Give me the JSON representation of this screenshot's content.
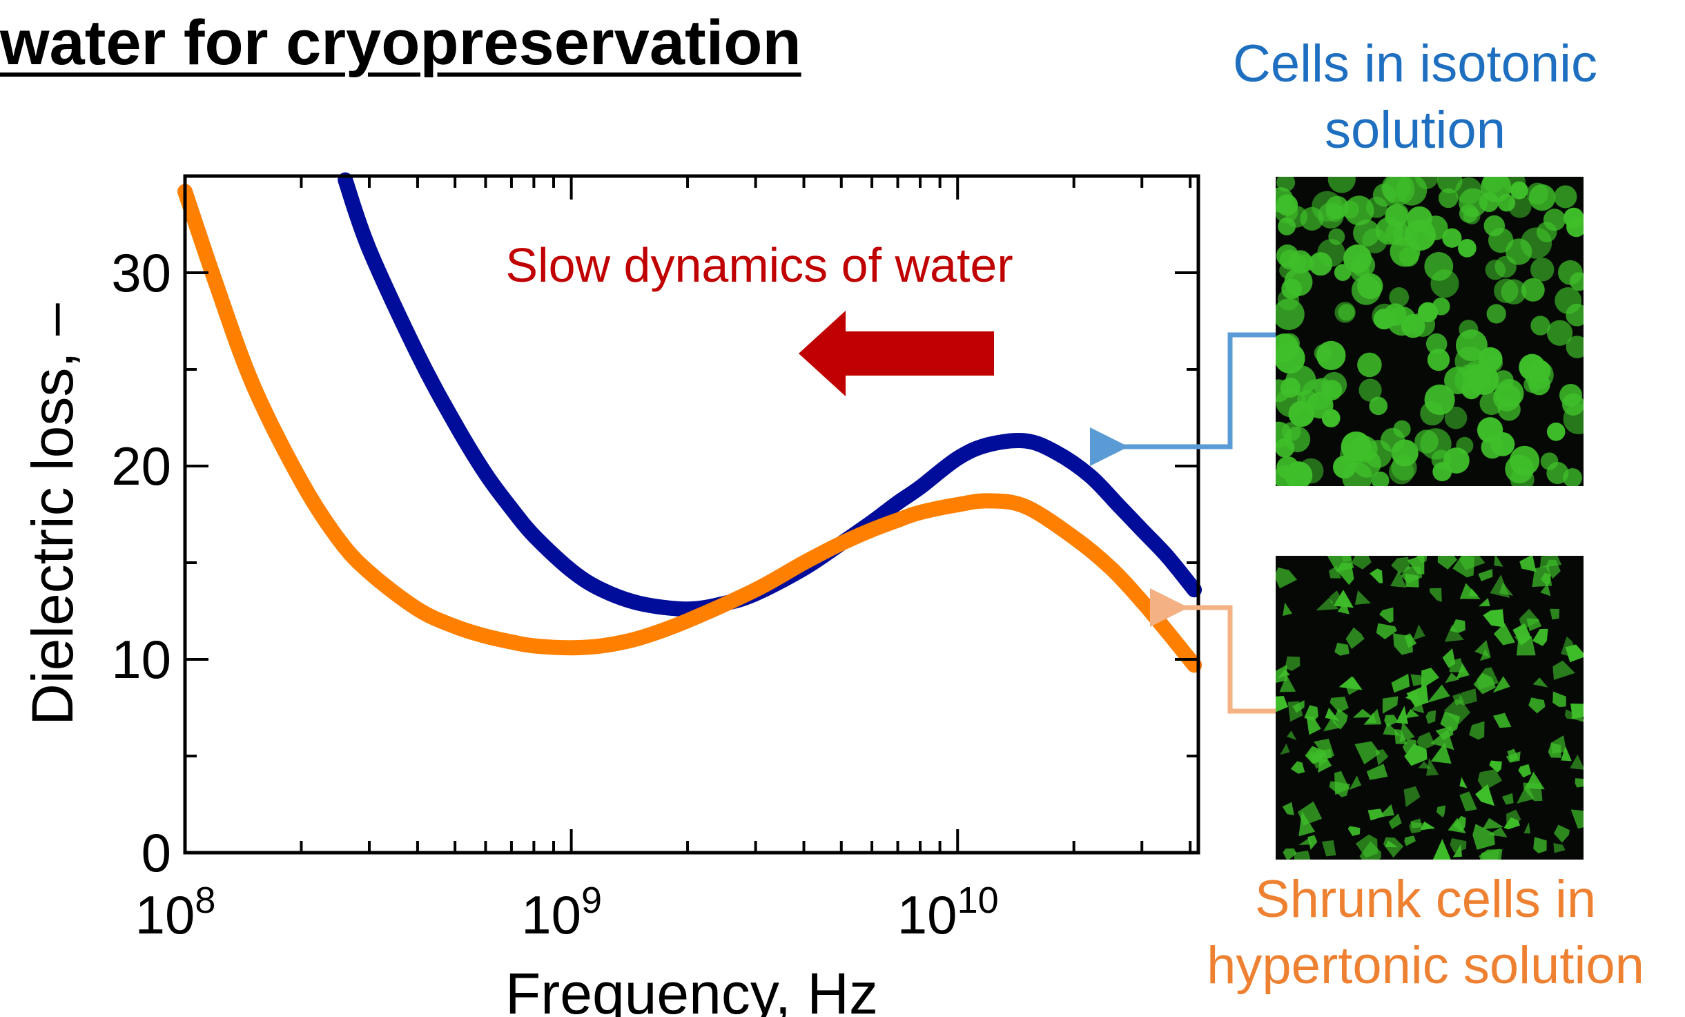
{
  "slide": {
    "title": "water for cryopreservation"
  },
  "panels": {
    "isotonic_caption": "Cells in isotonic solution",
    "isotonic_caption_lines": [
      "Cells in isotonic",
      "solution"
    ],
    "hypertonic_caption": "Shrunk cells in hypertonic solution",
    "hypertonic_caption_lines": [
      "Shrunk cells in",
      "hypertonic solution"
    ]
  },
  "colors": {
    "isotonic_series": "#000c9a",
    "hypertonic_series": "#ff8000",
    "annotation": "#c00000",
    "isotonic_arrow": "#5b9bd5",
    "hypertonic_arrow": "#f4b183",
    "isotonic_caption": "#1f6fc0",
    "hypertonic_caption": "#ee8131",
    "cell_fluorescence": "#3fbf2a"
  },
  "chart_data": {
    "type": "line",
    "xlabel": "Frequency, Hz",
    "ylabel": "Dielectric loss, –",
    "x_scale": "log",
    "xlim": [
      100000000.0,
      42000000000.0
    ],
    "ylim": [
      0,
      35
    ],
    "x_ticks": [
      {
        "value": 100000000.0,
        "base": "10",
        "exp": "8"
      },
      {
        "value": 1000000000.0,
        "base": "10",
        "exp": "9"
      },
      {
        "value": 10000000000.0,
        "base": "10",
        "exp": "10"
      }
    ],
    "y_ticks": [
      0,
      10,
      20,
      30
    ],
    "annotation": "Slow dynamics of water",
    "annotation_arrow_direction": "left",
    "grid": false,
    "series": [
      {
        "key": "isotonic",
        "color_key": "isotonic_series",
        "x": [
          260000000.0,
          300000000.0,
          400000000.0,
          500000000.0,
          600000000.0,
          700000000.0,
          800000000.0,
          1000000000.0,
          1200000000.0,
          1500000000.0,
          2000000000.0,
          2500000000.0,
          3000000000.0,
          4000000000.0,
          5000000000.0,
          6000000000.0,
          7000000000.0,
          8000000000.0,
          10000000000.0,
          12000000000.0,
          15000000000.0,
          18000000000.0,
          22000000000.0,
          26000000000.0,
          30000000000.0,
          35000000000.0,
          41000000000.0
        ],
        "y": [
          34.8,
          31.2,
          25.8,
          22.2,
          19.6,
          17.8,
          16.4,
          14.6,
          13.6,
          12.9,
          12.6,
          12.9,
          13.4,
          14.7,
          16.0,
          17.1,
          18.1,
          18.9,
          20.4,
          21.1,
          21.3,
          20.7,
          19.5,
          18.0,
          16.7,
          15.3,
          13.6
        ]
      },
      {
        "key": "hypertonic",
        "color_key": "hypertonic_series",
        "x": [
          100000000.0,
          120000000.0,
          150000000.0,
          200000000.0,
          250000000.0,
          300000000.0,
          400000000.0,
          500000000.0,
          600000000.0,
          700000000.0,
          800000000.0,
          1000000000.0,
          1200000000.0,
          1500000000.0,
          2000000000.0,
          3000000000.0,
          4000000000.0,
          5000000000.0,
          6000000000.0,
          7000000000.0,
          8000000000.0,
          10000000000.0,
          12000000000.0,
          15000000000.0,
          20000000000.0,
          25000000000.0,
          30000000000.0,
          35000000000.0,
          41000000000.0
        ],
        "y": [
          34.2,
          29.5,
          24.2,
          19.2,
          16.2,
          14.5,
          12.6,
          11.7,
          11.2,
          10.9,
          10.7,
          10.6,
          10.7,
          11.1,
          12.0,
          13.6,
          15.0,
          16.0,
          16.7,
          17.2,
          17.6,
          18.0,
          18.2,
          17.9,
          16.3,
          14.7,
          13.0,
          11.4,
          9.7
        ]
      }
    ]
  }
}
